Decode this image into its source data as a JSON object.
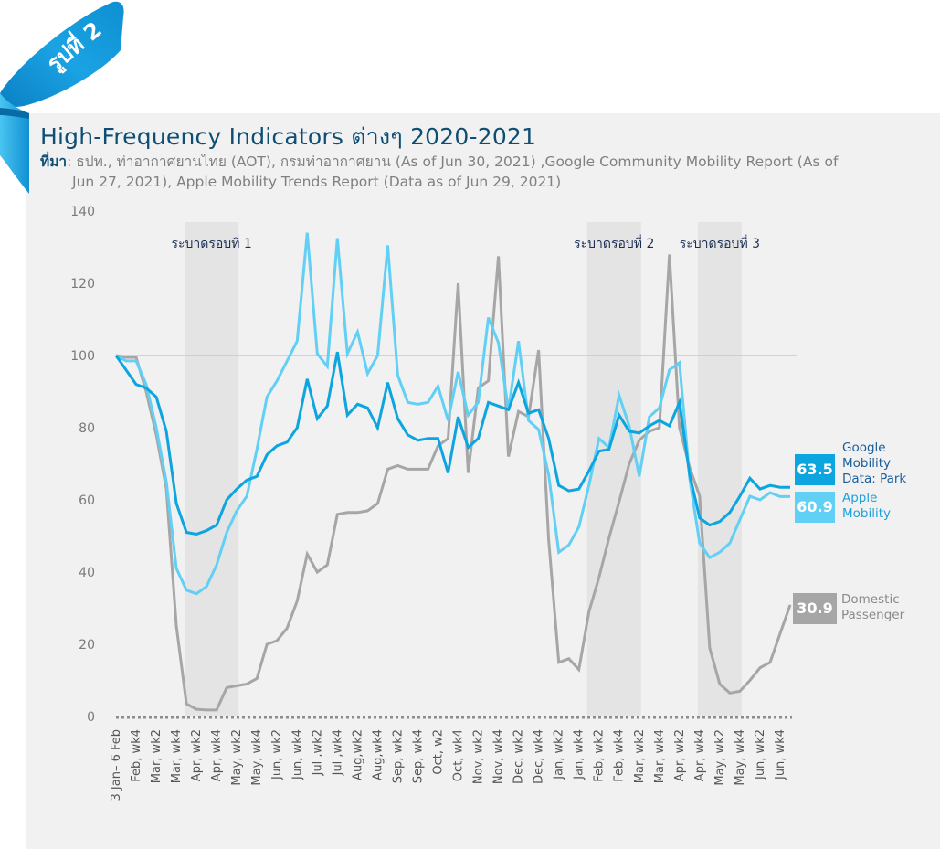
{
  "badge": {
    "text": "รูปที่ 2"
  },
  "header": {
    "title": "High-Frequency Indicators ต่างๆ 2020-2021",
    "source_label": "ที่มา",
    "source_line1": ": ธปท., ท่าอากาศยานไทย (AOT), กรมท่าอากาศยาน (As of Jun 30, 2021) ,Google Community  Mobility Report (As of",
    "source_line2": "Jun 27, 2021), Apple Mobility Trends Report (Data as of Jun 29, 2021)"
  },
  "colors": {
    "google": "#0da5e0",
    "apple": "#62cff5",
    "domestic": "#a6a6a6",
    "band": "#e4e4e4",
    "title": "#0f4e74"
  },
  "chart_data": {
    "type": "line",
    "title": "High-Frequency Indicators ต่างๆ 2020-2021",
    "xlabel": "",
    "ylabel": "",
    "ylim": [
      0,
      140
    ],
    "yticks": [
      0,
      20,
      40,
      60,
      80,
      100,
      120,
      140
    ],
    "reference_line": 100,
    "grid": false,
    "x_labels": [
      "3 Jan– 6 Feb",
      "Feb, wk4",
      "Mar, wk2",
      "Mar, wk4",
      "Apr, wk2",
      "Apr, wk4",
      "May, wk2",
      "May, wk4",
      "Jun, wk2",
      "Jun, wk4",
      "Jul ,wk2",
      "Jul ,wk4",
      "Aug,wk2",
      "Aug,wk4",
      "Sep, wk2",
      "Sep, wk4",
      "Oct, w2",
      "Oct, wk4",
      "Nov, wk2",
      "Nov, wk4",
      "Dec, wk2",
      "Dec, wk4",
      "Jan, wk2",
      "Jan, wk4",
      "Feb, wk2",
      "Feb, wk4",
      "Mar, wk2",
      "Mar, wk4",
      "Apr, wk2",
      "Apr, wk4",
      "May, wk2",
      "May, wk4",
      "Jun, wk2",
      "Jun, wk4"
    ],
    "bands": [
      {
        "label": "ระบาดรอบที่ 1",
        "start_index": 7,
        "end_index": 12
      },
      {
        "label": "ระบาดรอบที่ 2",
        "start_index": 47,
        "end_index": 52
      },
      {
        "label": "ระบาดรอบที่ 3",
        "start_index": 58,
        "end_index": 62
      }
    ],
    "series": [
      {
        "name": "Google Mobility Data: Park",
        "legend_lines": [
          "Google",
          "Mobility",
          "Data: Park"
        ],
        "last_value": "63.5",
        "values": [
          100,
          96,
          92,
          91,
          88.5,
          79,
          59,
          51,
          50.5,
          51.5,
          53,
          60,
          63,
          65.5,
          66.5,
          72.5,
          75,
          76,
          80,
          93.5,
          82.5,
          86,
          101,
          83.5,
          86.5,
          85.5,
          80,
          92.5,
          82.5,
          78,
          76.5,
          77,
          77,
          67.5,
          83,
          74.5,
          77,
          87,
          86,
          85,
          92.5,
          84,
          85,
          77,
          64,
          62.5,
          63,
          68,
          73.5,
          74,
          83.5,
          79,
          78.5,
          80.5,
          82,
          80.5,
          87,
          67,
          55,
          53,
          54,
          56.5,
          61,
          66,
          63,
          64,
          63.5,
          63.5
        ]
      },
      {
        "name": "Apple Mobility",
        "legend_lines": [
          "Apple",
          "Mobility"
        ],
        "last_value": "60.9",
        "values": [
          100,
          98.5,
          98.5,
          92,
          80,
          65,
          41,
          35,
          34,
          36,
          42,
          51,
          57,
          61,
          74,
          88.5,
          93,
          98.5,
          104,
          134,
          100.5,
          97,
          132.5,
          100.5,
          106.5,
          95,
          100,
          130.5,
          94.5,
          87,
          86.5,
          87,
          91.5,
          82,
          95.5,
          83.5,
          87,
          110.5,
          103.5,
          85,
          104,
          82,
          79.5,
          67,
          45.5,
          47.5,
          52.5,
          64,
          77,
          74.5,
          89,
          80.5,
          66.5,
          83,
          85.5,
          96,
          98,
          66,
          48,
          44,
          45.5,
          48,
          54.5,
          61,
          60,
          62,
          60.9,
          60.9
        ]
      },
      {
        "name": "Domestic Passenger",
        "legend_lines": [
          "Domestic",
          "Passenger"
        ],
        "last_value": "30.9",
        "values": [
          100,
          99.5,
          99.5,
          90,
          78,
          63,
          25,
          3.5,
          2,
          1.8,
          1.8,
          8,
          8.5,
          9,
          10.5,
          20,
          21,
          24.5,
          32,
          45,
          40,
          42,
          56,
          56.5,
          56.5,
          57,
          59,
          68.5,
          69.5,
          68.5,
          68.5,
          68.5,
          75,
          77,
          120,
          67.5,
          91,
          93,
          127.5,
          72,
          84.5,
          83,
          101.5,
          49,
          15,
          16,
          13,
          29,
          38.5,
          49.5,
          59.5,
          70,
          76.5,
          79,
          80,
          128,
          80,
          69,
          61,
          19,
          9,
          6.5,
          7,
          10,
          13.5,
          15,
          23,
          30.9
        ]
      }
    ]
  }
}
